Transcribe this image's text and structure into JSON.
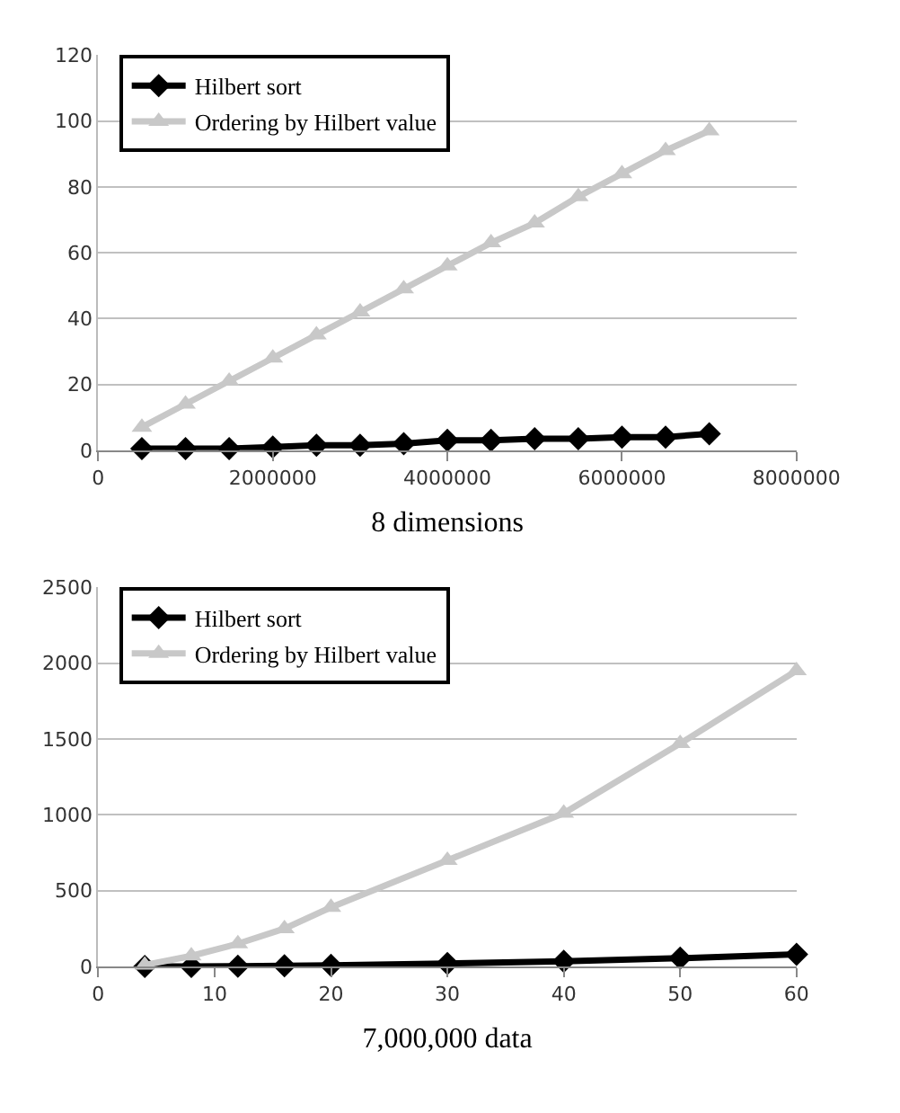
{
  "chart_data": [
    {
      "type": "line",
      "xlabel": "8 dimensions",
      "x": [
        500000,
        1000000,
        1500000,
        2000000,
        2500000,
        3000000,
        3500000,
        4000000,
        4500000,
        5000000,
        5500000,
        6000000,
        6500000,
        7000000
      ],
      "series": [
        {
          "name": "Hilbert sort",
          "color": "#000000",
          "marker": "diamond",
          "values": [
            0.5,
            0.5,
            0.5,
            1,
            1.5,
            1.5,
            2,
            3,
            3,
            3.5,
            3.5,
            4,
            4,
            5
          ]
        },
        {
          "name": "Ordering by Hilbert value",
          "color": "#c8c8c8",
          "marker": "triangle",
          "values": [
            7,
            14,
            21,
            28,
            35,
            42,
            49,
            56,
            63,
            69,
            77,
            84,
            91,
            97
          ]
        }
      ],
      "xlim": [
        0,
        8000000
      ],
      "xticks": [
        0,
        2000000,
        4000000,
        6000000,
        8000000
      ],
      "ylim": [
        0,
        120
      ],
      "yticks": [
        0,
        20,
        40,
        60,
        80,
        100,
        120
      ],
      "grid": "y",
      "legend": "top left",
      "line_style": "solid"
    },
    {
      "type": "line",
      "xlabel": "7,000,000 data",
      "x": [
        4,
        8,
        12,
        16,
        20,
        30,
        40,
        50,
        60
      ],
      "series": [
        {
          "name": "Hilbert sort",
          "color": "#000000",
          "marker": "diamond",
          "values": [
            0,
            0,
            2,
            5,
            8,
            20,
            35,
            55,
            80
          ]
        },
        {
          "name": "Ordering by Hilbert value",
          "color": "#c8c8c8",
          "marker": "triangle",
          "values": [
            10,
            70,
            150,
            250,
            390,
            700,
            1010,
            1470,
            1950
          ]
        }
      ],
      "xlim": [
        0,
        60
      ],
      "xticks": [
        0,
        10,
        20,
        30,
        40,
        50,
        60
      ],
      "ylim": [
        0,
        2500
      ],
      "yticks": [
        0,
        500,
        1000,
        1500,
        2000,
        2500
      ],
      "grid": "y",
      "legend": "top left",
      "line_style": "solid"
    }
  ]
}
